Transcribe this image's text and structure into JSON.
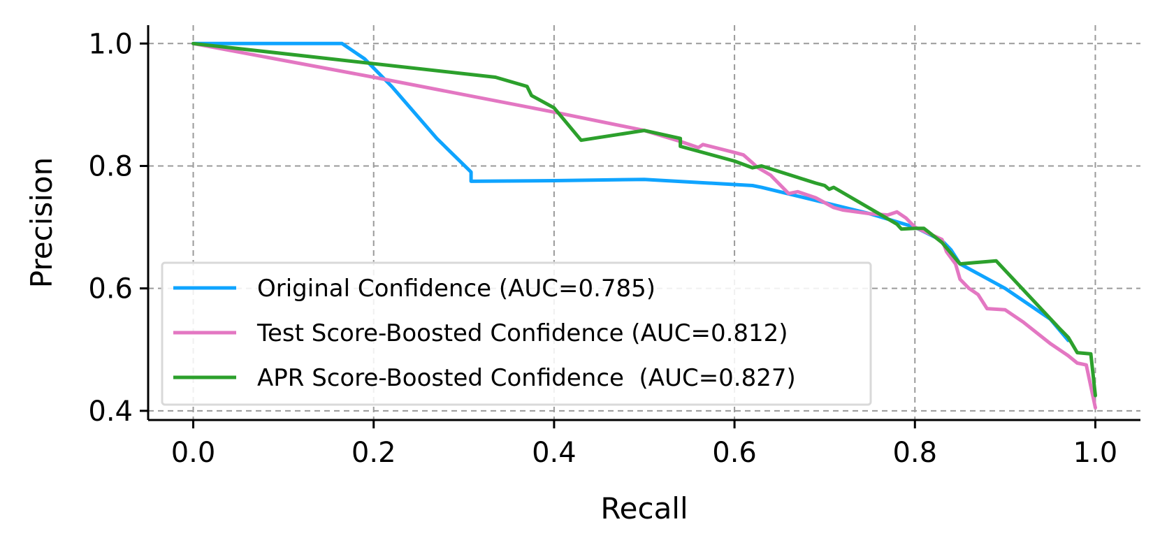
{
  "chart_data": {
    "type": "line",
    "title": "",
    "xlabel": "Recall",
    "ylabel": "Precision",
    "xlim": [
      -0.05,
      1.05
    ],
    "ylim": [
      0.385,
      1.03
    ],
    "xticks": [
      0.0,
      0.2,
      0.4,
      0.6,
      0.8,
      1.0
    ],
    "xtick_labels": [
      "0.0",
      "0.2",
      "0.4",
      "0.6",
      "0.8",
      "1.0"
    ],
    "yticks": [
      0.4,
      0.6,
      0.8,
      1.0
    ],
    "ytick_labels": [
      "0.4",
      "0.6",
      "0.8",
      "1.0"
    ],
    "grid": true,
    "legend_position": "lower-left",
    "series": [
      {
        "name": "Original Confidence (AUC=0.785)",
        "color": "#0fa4ff",
        "x": [
          0.0,
          0.165,
          0.19,
          0.22,
          0.27,
          0.308,
          0.308,
          0.4,
          0.5,
          0.62,
          0.63,
          0.65,
          0.7,
          0.75,
          0.8,
          0.83,
          0.84,
          0.85,
          0.9,
          0.95,
          0.97
        ],
        "y": [
          1.0,
          1.0,
          0.975,
          0.93,
          0.845,
          0.79,
          0.775,
          0.776,
          0.778,
          0.768,
          0.765,
          0.758,
          0.74,
          0.722,
          0.7,
          0.678,
          0.663,
          0.64,
          0.6,
          0.55,
          0.515
        ]
      },
      {
        "name": "Test Score-Boosted Confidence (AUC=0.812)",
        "color": "#e377c2",
        "x": [
          0.0,
          0.2,
          0.4,
          0.5,
          0.54,
          0.55,
          0.56,
          0.565,
          0.6,
          0.61,
          0.62,
          0.625,
          0.64,
          0.65,
          0.66,
          0.67,
          0.69,
          0.7,
          0.71,
          0.72,
          0.75,
          0.77,
          0.78,
          0.79,
          0.8,
          0.83,
          0.835,
          0.84,
          0.845,
          0.85,
          0.86,
          0.87,
          0.88,
          0.9,
          0.92,
          0.95,
          0.97,
          0.98,
          0.99,
          1.0
        ],
        "y": [
          1.0,
          0.945,
          0.888,
          0.858,
          0.84,
          0.835,
          0.83,
          0.835,
          0.822,
          0.818,
          0.805,
          0.798,
          0.785,
          0.77,
          0.755,
          0.758,
          0.748,
          0.74,
          0.732,
          0.728,
          0.722,
          0.72,
          0.725,
          0.715,
          0.7,
          0.68,
          0.66,
          0.65,
          0.64,
          0.615,
          0.6,
          0.59,
          0.567,
          0.565,
          0.545,
          0.51,
          0.49,
          0.478,
          0.475,
          0.405
        ]
      },
      {
        "name": "APR Score-Boosted Confidence  (AUC=0.827)",
        "color": "#2ca02c",
        "x": [
          0.0,
          0.335,
          0.37,
          0.375,
          0.4,
          0.43,
          0.5,
          0.54,
          0.54,
          0.6,
          0.62,
          0.63,
          0.69,
          0.7,
          0.705,
          0.71,
          0.78,
          0.785,
          0.8,
          0.81,
          0.83,
          0.85,
          0.89,
          0.96,
          0.97,
          0.98,
          0.995,
          1.0
        ],
        "y": [
          1.0,
          0.945,
          0.93,
          0.915,
          0.895,
          0.842,
          0.858,
          0.845,
          0.832,
          0.808,
          0.797,
          0.8,
          0.772,
          0.768,
          0.762,
          0.765,
          0.705,
          0.697,
          0.698,
          0.698,
          0.675,
          0.64,
          0.645,
          0.535,
          0.52,
          0.495,
          0.493,
          0.425
        ]
      }
    ]
  }
}
